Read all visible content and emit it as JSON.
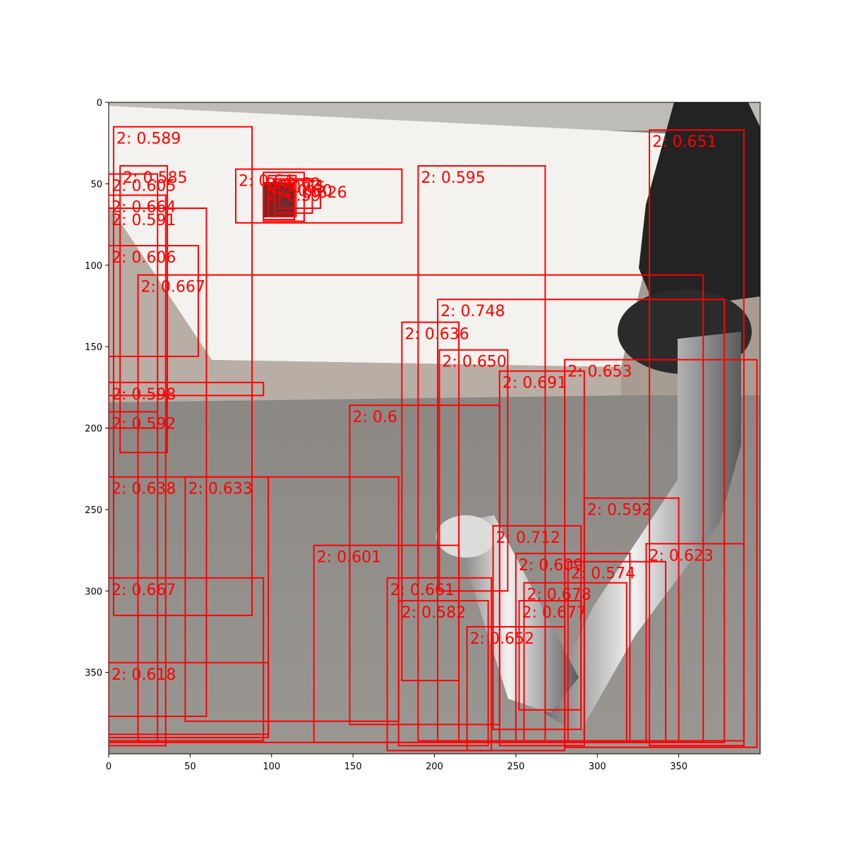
{
  "axes": {
    "x_ticks": [
      0,
      50,
      100,
      150,
      200,
      250,
      300,
      350
    ],
    "y_ticks": [
      0,
      50,
      100,
      150,
      200,
      250,
      300,
      350
    ],
    "x_range": [
      0,
      400
    ],
    "y_range": [
      0,
      400
    ]
  },
  "colors": {
    "box": "#ff0000",
    "wall_top": "#bdbcb6",
    "wall": "#f3f2ee",
    "floor": "#8f8c88",
    "robot_dark": "#222222",
    "robot_light": "#d8d8d8"
  },
  "detections": [
    {
      "label": "2: 0.589",
      "x0": 3,
      "y0": 15,
      "x1": 88,
      "y1": 315
    },
    {
      "label": "2: 0.651",
      "x0": 332,
      "y0": 17,
      "x1": 390,
      "y1": 395
    },
    {
      "label": "2: 0.595",
      "x0": 190,
      "y0": 39,
      "x1": 268,
      "y1": 392
    },
    {
      "label": "2: 0.585",
      "x0": 7,
      "y0": 39,
      "x1": 36,
      "y1": 215
    },
    {
      "label": "2: 0.605",
      "x0": 0,
      "y0": 44,
      "x1": 30,
      "y1": 200
    },
    {
      "label": "2: 0.664",
      "x0": 0,
      "y0": 57,
      "x1": 35,
      "y1": 395
    },
    {
      "label": "2: 0.591",
      "x0": 0,
      "y0": 65,
      "x1": 60,
      "y1": 377
    },
    {
      "label": "2: 0.606",
      "x0": 0,
      "y0": 88,
      "x1": 55,
      "y1": 156
    },
    {
      "label": "2: 0.667",
      "x0": 18,
      "y0": 106,
      "x1": 365,
      "y1": 393
    },
    {
      "label": "2: 0.748",
      "x0": 202,
      "y0": 121,
      "x1": 378,
      "y1": 393
    },
    {
      "label": "2: 0.636",
      "x0": 180,
      "y0": 135,
      "x1": 215,
      "y1": 355
    },
    {
      "label": "2: 0.650",
      "x0": 203,
      "y0": 152,
      "x1": 245,
      "y1": 300
    },
    {
      "label": "2: 0.653",
      "x0": 280,
      "y0": 158,
      "x1": 398,
      "y1": 396
    },
    {
      "label": "2: 0.691",
      "x0": 240,
      "y0": 165,
      "x1": 292,
      "y1": 395
    },
    {
      "label": "2: 0.592",
      "x0": 0,
      "y0": 190,
      "x1": 30,
      "y1": 393
    },
    {
      "label": "2: 0.598",
      "x0": 0,
      "y0": 172,
      "x1": 95,
      "y1": 180
    },
    {
      "label": "2: 0.638",
      "x0": 0,
      "y0": 230,
      "x1": 98,
      "y1": 388
    },
    {
      "label": "2: 0.633",
      "x0": 47,
      "y0": 230,
      "x1": 178,
      "y1": 380
    },
    {
      "label": "2: 0.6",
      "x0": 148,
      "y0": 186,
      "x1": 240,
      "y1": 382
    },
    {
      "label": "2: 0.592",
      "x0": 292,
      "y0": 243,
      "x1": 350,
      "y1": 392
    },
    {
      "label": "2: 0.712",
      "x0": 236,
      "y0": 260,
      "x1": 290,
      "y1": 385
    },
    {
      "label": "2: 0.601",
      "x0": 126,
      "y0": 272,
      "x1": 215,
      "y1": 393
    },
    {
      "label": "2: 0.623",
      "x0": 330,
      "y0": 271,
      "x1": 390,
      "y1": 392
    },
    {
      "label": "2: 0.609",
      "x0": 250,
      "y0": 277,
      "x1": 320,
      "y1": 392
    },
    {
      "label": "2: 0.574",
      "x0": 282,
      "y0": 282,
      "x1": 342,
      "y1": 392
    },
    {
      "label": "2: 0.678",
      "x0": 255,
      "y0": 295,
      "x1": 318,
      "y1": 392
    },
    {
      "label": "2: 0.661",
      "x0": 171,
      "y0": 292,
      "x1": 235,
      "y1": 398
    },
    {
      "label": "2: 0.582",
      "x0": 178,
      "y0": 306,
      "x1": 233,
      "y1": 395
    },
    {
      "label": "2: 0.677",
      "x0": 252,
      "y0": 306,
      "x1": 290,
      "y1": 373
    },
    {
      "label": "2: 0.652",
      "x0": 220,
      "y0": 322,
      "x1": 280,
      "y1": 398
    },
    {
      "label": "2: 0.667",
      "x0": 0,
      "y0": 292,
      "x1": 95,
      "y1": 392
    },
    {
      "label": "2: 0.618",
      "x0": 0,
      "y0": 344,
      "x1": 98,
      "y1": 390
    },
    {
      "label": "2: 0.64",
      "x0": 78,
      "y0": 41,
      "x1": 180,
      "y1": 74
    },
    {
      "label": "2: 0.62",
      "x0": 95,
      "y0": 43,
      "x1": 120,
      "y1": 73
    },
    {
      "label": "2: 0.65",
      "x0": 98,
      "y0": 45,
      "x1": 115,
      "y1": 70
    },
    {
      "label": "2: 0.60",
      "x0": 102,
      "y0": 47,
      "x1": 125,
      "y1": 68
    },
    {
      "label": "2: 0.626",
      "x0": 105,
      "y0": 48,
      "x1": 130,
      "y1": 65
    },
    {
      "label": "2: 0.59",
      "x0": 95,
      "y0": 50,
      "x1": 114,
      "y1": 72
    }
  ]
}
